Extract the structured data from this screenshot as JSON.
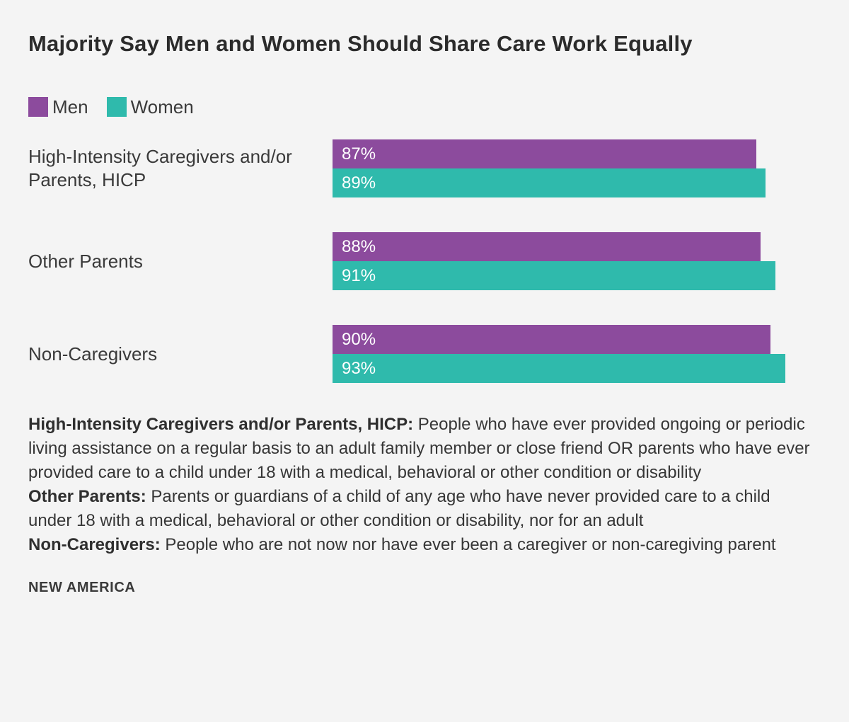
{
  "title": "Majority Say Men and Women Should Share Care Work Equally",
  "legend": [
    {
      "label": "Men",
      "color": "#8c4b9d"
    },
    {
      "label": "Women",
      "color": "#2fbaac"
    }
  ],
  "chart_data": {
    "type": "bar",
    "orientation": "horizontal",
    "title": "Majority Say Men and Women Should Share Care Work Equally",
    "categories": [
      "High-Intensity Caregivers and/or Parents, HICP",
      "Other Parents",
      "Non-Caregivers"
    ],
    "series": [
      {
        "name": "Men",
        "color": "#8c4b9d",
        "values": [
          87,
          88,
          90
        ]
      },
      {
        "name": "Women",
        "color": "#2fbaac",
        "values": [
          89,
          91,
          93
        ]
      }
    ],
    "value_suffix": "%",
    "xlim": [
      0,
      100
    ],
    "xlabel": "",
    "ylabel": "",
    "grid": false,
    "legend_position": "top-left",
    "value_labels": "inside-left"
  },
  "notes": [
    {
      "term": "High-Intensity Caregivers and/or Parents, HICP:",
      "definition": " People who have ever provided ongoing or periodic living assistance on a regular basis to an adult family member or close friend OR parents who have ever provided care to a child under 18 with a medical, behavioral or other condition or disability"
    },
    {
      "term": "Other Parents:",
      "definition": " Parents or guardians of a child of any age who have never provided care to a child under 18 with a medical, behavioral or other condition or disability, nor for an adult"
    },
    {
      "term": "Non-Caregivers:",
      "definition": " People who are not now nor have ever been a caregiver or non-caregiving parent"
    }
  ],
  "source": "NEW AMERICA",
  "colors": {
    "background": "#f4f4f4",
    "men": "#8c4b9d",
    "women": "#2fbaac",
    "text": "#333333"
  }
}
